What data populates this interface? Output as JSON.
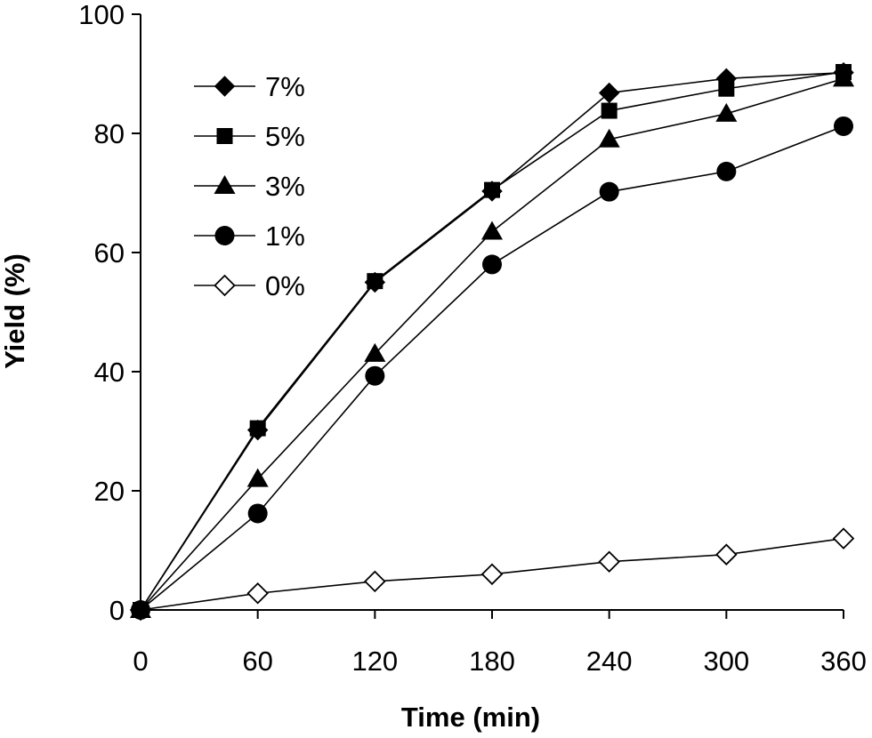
{
  "chart_data": {
    "type": "line",
    "title": "",
    "xlabel": "Time (min)",
    "ylabel": "Yield (%)",
    "xlim": [
      0,
      360
    ],
    "ylim": [
      0,
      100
    ],
    "x_ticks": [
      0,
      60,
      120,
      180,
      240,
      300,
      360
    ],
    "y_ticks": [
      0,
      20,
      40,
      60,
      80,
      100
    ],
    "grid": false,
    "legend_position": "top-left",
    "x": [
      0,
      60,
      120,
      180,
      240,
      300,
      360
    ],
    "series": [
      {
        "name": "7%",
        "marker": "diamond-filled",
        "color": "#000000",
        "values": [
          0,
          30.2,
          55,
          70.3,
          86.8,
          89.2,
          90.2
        ]
      },
      {
        "name": "5%",
        "marker": "square-filled",
        "color": "#000000",
        "values": [
          0,
          30.5,
          55.2,
          70.5,
          83.8,
          87.5,
          90.3
        ]
      },
      {
        "name": "3%",
        "marker": "triangle-filled",
        "color": "#000000",
        "values": [
          0,
          22,
          43,
          63.5,
          79,
          83.3,
          89.2
        ]
      },
      {
        "name": "1%",
        "marker": "circle-filled",
        "color": "#000000",
        "values": [
          0,
          16.2,
          39.3,
          58,
          70.2,
          73.6,
          81.2
        ]
      },
      {
        "name": "0%",
        "marker": "diamond-open",
        "color": "#000000",
        "values": [
          0,
          2.8,
          4.8,
          6,
          8.1,
          9.3,
          12
        ]
      }
    ]
  }
}
